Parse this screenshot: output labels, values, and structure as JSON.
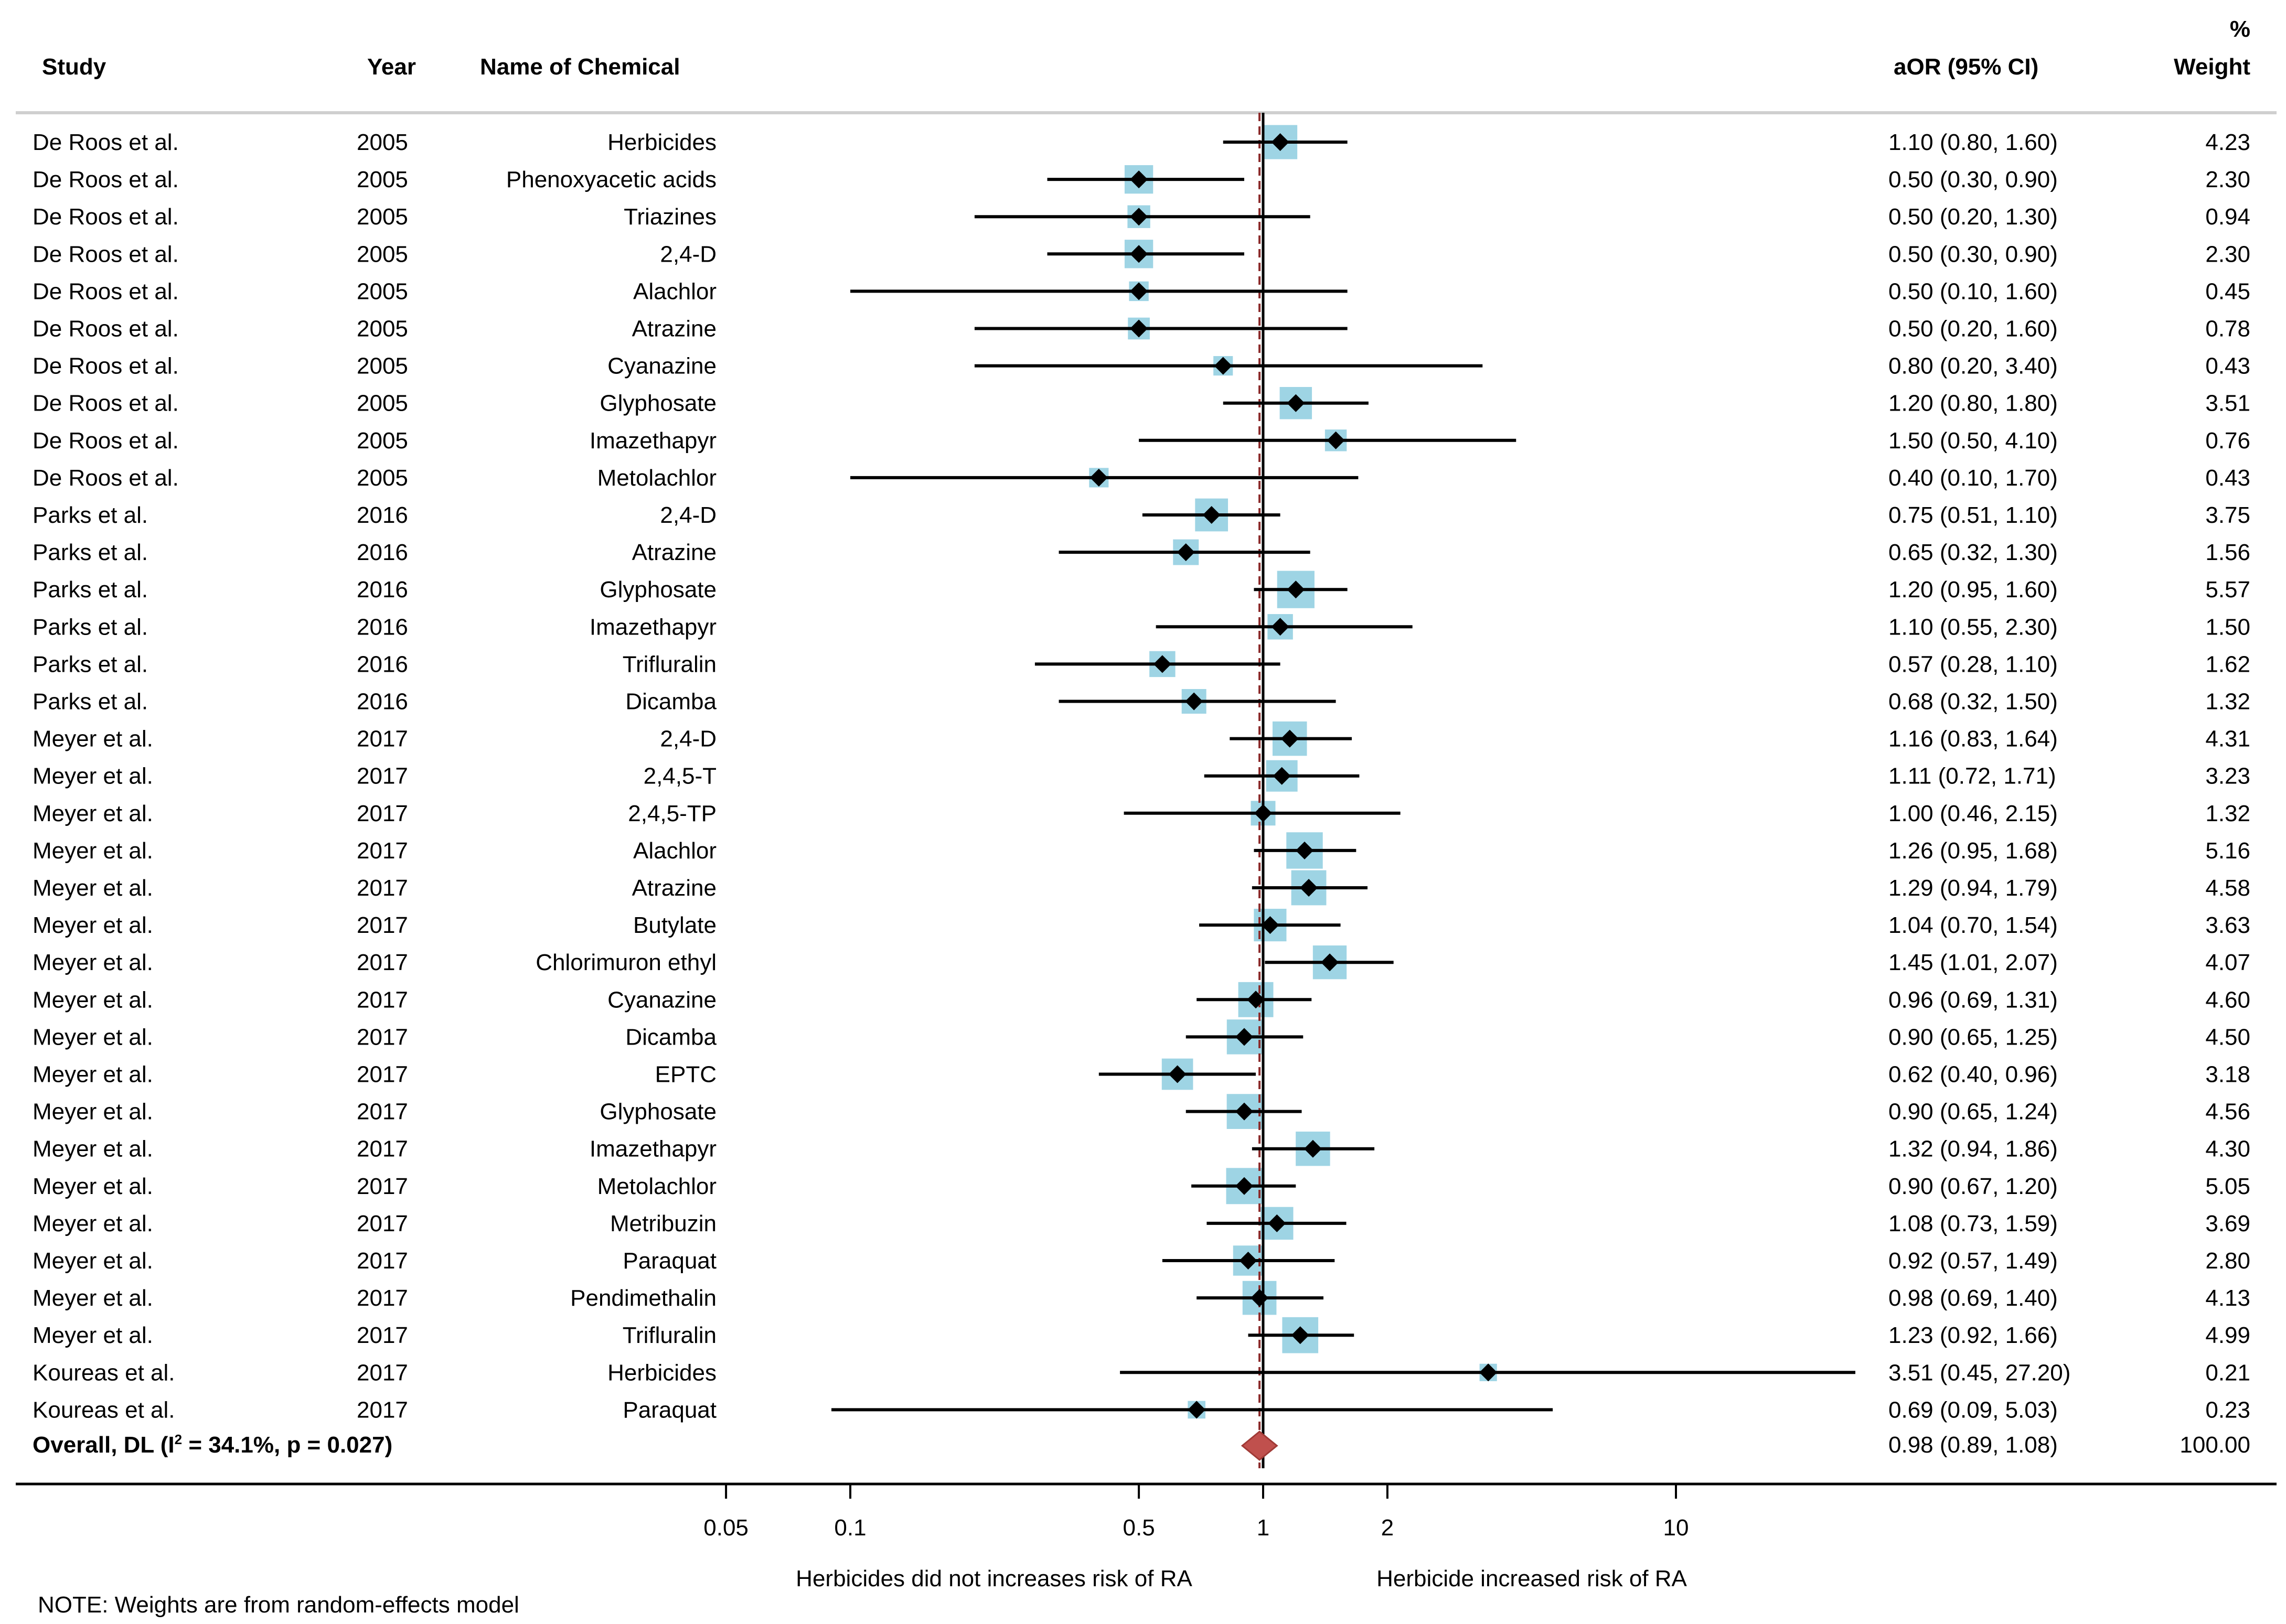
{
  "chart_data": {
    "type": "forest",
    "headers": {
      "study": "Study",
      "year": "Year",
      "chemical": "Name of Chemical",
      "aor": "aOR (95% CI)",
      "weight_top": "%",
      "weight_bottom": "Weight"
    },
    "rows": [
      {
        "study": "De Roos et al.",
        "year": "2005",
        "chemical": "Herbicides",
        "or": 1.1,
        "lo": 0.8,
        "hi": 1.6,
        "ci_text": "1.10 (0.80, 1.60)",
        "weight": "4.23"
      },
      {
        "study": "De Roos et al.",
        "year": "2005",
        "chemical": "Phenoxyacetic acids",
        "or": 0.5,
        "lo": 0.3,
        "hi": 0.9,
        "ci_text": "0.50 (0.30, 0.90)",
        "weight": "2.30"
      },
      {
        "study": "De Roos et al.",
        "year": "2005",
        "chemical": "Triazines",
        "or": 0.5,
        "lo": 0.2,
        "hi": 1.3,
        "ci_text": "0.50 (0.20, 1.30)",
        "weight": "0.94"
      },
      {
        "study": "De Roos et al.",
        "year": "2005",
        "chemical": "2,4-D",
        "or": 0.5,
        "lo": 0.3,
        "hi": 0.9,
        "ci_text": "0.50 (0.30, 0.90)",
        "weight": "2.30"
      },
      {
        "study": "De Roos et al.",
        "year": "2005",
        "chemical": "Alachlor",
        "or": 0.5,
        "lo": 0.1,
        "hi": 1.6,
        "ci_text": "0.50 (0.10, 1.60)",
        "weight": "0.45"
      },
      {
        "study": "De Roos et al.",
        "year": "2005",
        "chemical": "Atrazine",
        "or": 0.5,
        "lo": 0.2,
        "hi": 1.6,
        "ci_text": "0.50 (0.20, 1.60)",
        "weight": "0.78"
      },
      {
        "study": "De Roos et al.",
        "year": "2005",
        "chemical": "Cyanazine",
        "or": 0.8,
        "lo": 0.2,
        "hi": 3.4,
        "ci_text": "0.80 (0.20, 3.40)",
        "weight": "0.43"
      },
      {
        "study": "De Roos et al.",
        "year": "2005",
        "chemical": "Glyphosate",
        "or": 1.2,
        "lo": 0.8,
        "hi": 1.8,
        "ci_text": "1.20 (0.80, 1.80)",
        "weight": "3.51"
      },
      {
        "study": "De Roos et al.",
        "year": "2005",
        "chemical": "Imazethapyr",
        "or": 1.5,
        "lo": 0.5,
        "hi": 4.1,
        "ci_text": "1.50 (0.50, 4.10)",
        "weight": "0.76"
      },
      {
        "study": "De Roos et al.",
        "year": "2005",
        "chemical": "Metolachlor",
        "or": 0.4,
        "lo": 0.1,
        "hi": 1.7,
        "ci_text": "0.40 (0.10, 1.70)",
        "weight": "0.43"
      },
      {
        "study": "Parks et al.",
        "year": "2016",
        "chemical": "2,4-D",
        "or": 0.75,
        "lo": 0.51,
        "hi": 1.1,
        "ci_text": "0.75 (0.51, 1.10)",
        "weight": "3.75"
      },
      {
        "study": "Parks et al.",
        "year": "2016",
        "chemical": "Atrazine",
        "or": 0.65,
        "lo": 0.32,
        "hi": 1.3,
        "ci_text": "0.65 (0.32, 1.30)",
        "weight": "1.56"
      },
      {
        "study": "Parks et al.",
        "year": "2016",
        "chemical": "Glyphosate",
        "or": 1.2,
        "lo": 0.95,
        "hi": 1.6,
        "ci_text": "1.20 (0.95, 1.60)",
        "weight": "5.57"
      },
      {
        "study": "Parks et al.",
        "year": "2016",
        "chemical": "Imazethapyr",
        "or": 1.1,
        "lo": 0.55,
        "hi": 2.3,
        "ci_text": "1.10 (0.55, 2.30)",
        "weight": "1.50"
      },
      {
        "study": "Parks et al.",
        "year": "2016",
        "chemical": "Trifluralin",
        "or": 0.57,
        "lo": 0.28,
        "hi": 1.1,
        "ci_text": "0.57 (0.28, 1.10)",
        "weight": "1.62"
      },
      {
        "study": "Parks et al.",
        "year": "2016",
        "chemical": "Dicamba",
        "or": 0.68,
        "lo": 0.32,
        "hi": 1.5,
        "ci_text": "0.68 (0.32, 1.50)",
        "weight": "1.32"
      },
      {
        "study": "Meyer et al.",
        "year": "2017",
        "chemical": "2,4-D",
        "or": 1.16,
        "lo": 0.83,
        "hi": 1.64,
        "ci_text": "1.16 (0.83, 1.64)",
        "weight": "4.31"
      },
      {
        "study": "Meyer et al.",
        "year": "2017",
        "chemical": "2,4,5-T",
        "or": 1.11,
        "lo": 0.72,
        "hi": 1.71,
        "ci_text": "1.11 (0.72, 1.71)",
        "weight": "3.23"
      },
      {
        "study": "Meyer et al.",
        "year": "2017",
        "chemical": "2,4,5-TP",
        "or": 1.0,
        "lo": 0.46,
        "hi": 2.15,
        "ci_text": "1.00 (0.46, 2.15)",
        "weight": "1.32"
      },
      {
        "study": "Meyer et al.",
        "year": "2017",
        "chemical": "Alachlor",
        "or": 1.26,
        "lo": 0.95,
        "hi": 1.68,
        "ci_text": "1.26 (0.95, 1.68)",
        "weight": "5.16"
      },
      {
        "study": "Meyer et al.",
        "year": "2017",
        "chemical": "Atrazine",
        "or": 1.29,
        "lo": 0.94,
        "hi": 1.79,
        "ci_text": "1.29 (0.94, 1.79)",
        "weight": "4.58"
      },
      {
        "study": "Meyer et al.",
        "year": "2017",
        "chemical": "Butylate",
        "or": 1.04,
        "lo": 0.7,
        "hi": 1.54,
        "ci_text": "1.04 (0.70, 1.54)",
        "weight": "3.63"
      },
      {
        "study": "Meyer et al.",
        "year": "2017",
        "chemical": "Chlorimuron ethyl",
        "or": 1.45,
        "lo": 1.01,
        "hi": 2.07,
        "ci_text": "1.45 (1.01, 2.07)",
        "weight": "4.07"
      },
      {
        "study": "Meyer et al.",
        "year": "2017",
        "chemical": "Cyanazine",
        "or": 0.96,
        "lo": 0.69,
        "hi": 1.31,
        "ci_text": "0.96 (0.69, 1.31)",
        "weight": "4.60"
      },
      {
        "study": "Meyer et al.",
        "year": "2017",
        "chemical": "Dicamba",
        "or": 0.9,
        "lo": 0.65,
        "hi": 1.25,
        "ci_text": "0.90 (0.65, 1.25)",
        "weight": "4.50"
      },
      {
        "study": "Meyer et al.",
        "year": "2017",
        "chemical": "EPTC",
        "or": 0.62,
        "lo": 0.4,
        "hi": 0.96,
        "ci_text": "0.62 (0.40, 0.96)",
        "weight": "3.18"
      },
      {
        "study": "Meyer et al.",
        "year": "2017",
        "chemical": "Glyphosate",
        "or": 0.9,
        "lo": 0.65,
        "hi": 1.24,
        "ci_text": "0.90 (0.65, 1.24)",
        "weight": "4.56"
      },
      {
        "study": "Meyer et al.",
        "year": "2017",
        "chemical": "Imazethapyr",
        "or": 1.32,
        "lo": 0.94,
        "hi": 1.86,
        "ci_text": "1.32 (0.94, 1.86)",
        "weight": "4.30"
      },
      {
        "study": "Meyer et al.",
        "year": "2017",
        "chemical": "Metolachlor",
        "or": 0.9,
        "lo": 0.67,
        "hi": 1.2,
        "ci_text": "0.90 (0.67, 1.20)",
        "weight": "5.05"
      },
      {
        "study": "Meyer et al.",
        "year": "2017",
        "chemical": "Metribuzin",
        "or": 1.08,
        "lo": 0.73,
        "hi": 1.59,
        "ci_text": "1.08 (0.73, 1.59)",
        "weight": "3.69"
      },
      {
        "study": "Meyer et al.",
        "year": "2017",
        "chemical": "Paraquat",
        "or": 0.92,
        "lo": 0.57,
        "hi": 1.49,
        "ci_text": "0.92 (0.57, 1.49)",
        "weight": "2.80"
      },
      {
        "study": "Meyer et al.",
        "year": "2017",
        "chemical": "Pendimethalin",
        "or": 0.98,
        "lo": 0.69,
        "hi": 1.4,
        "ci_text": "0.98 (0.69, 1.40)",
        "weight": "4.13"
      },
      {
        "study": "Meyer et al.",
        "year": "2017",
        "chemical": "Trifluralin",
        "or": 1.23,
        "lo": 0.92,
        "hi": 1.66,
        "ci_text": "1.23 (0.92, 1.66)",
        "weight": "4.99"
      },
      {
        "study": "Koureas et al.",
        "year": "2017",
        "chemical": "Herbicides",
        "or": 3.51,
        "lo": 0.45,
        "hi": 27.2,
        "ci_text": "3.51 (0.45, 27.20)",
        "weight": "0.21"
      },
      {
        "study": "Koureas et al.",
        "year": "2017",
        "chemical": "Paraquat",
        "or": 0.69,
        "lo": 0.09,
        "hi": 5.03,
        "ci_text": "0.69 (0.09, 5.03)",
        "weight": "0.23"
      }
    ],
    "overall": {
      "label_prefix": "Overall, DL (I",
      "label_sup": "2",
      "label_suffix": " = 34.1%, p = 0.027)",
      "or": 0.98,
      "lo": 0.89,
      "hi": 1.08,
      "ci_text": "0.98 (0.89, 1.08)",
      "weight": "100.00"
    },
    "x_axis": {
      "scale": "log",
      "ticks": [
        {
          "value": 0.05,
          "label": "0.05"
        },
        {
          "value": 0.1,
          "label": "0.1"
        },
        {
          "value": 0.5,
          "label": "0.5"
        },
        {
          "value": 1,
          "label": "1"
        },
        {
          "value": 2,
          "label": "2"
        },
        {
          "value": 10,
          "label": "10"
        }
      ],
      "left_label": "Herbicides did not increases risk of RA",
      "right_label": "Herbicide increased risk of RA"
    },
    "note": "NOTE: Weights are from random-effects model",
    "colors": {
      "box": "#9ed4e4",
      "marker": "#000000",
      "null_line": "#000000",
      "overall_line": "#8b2a2a",
      "overall_diamond": "#c0504d",
      "rule": "#cfcfcf"
    }
  }
}
